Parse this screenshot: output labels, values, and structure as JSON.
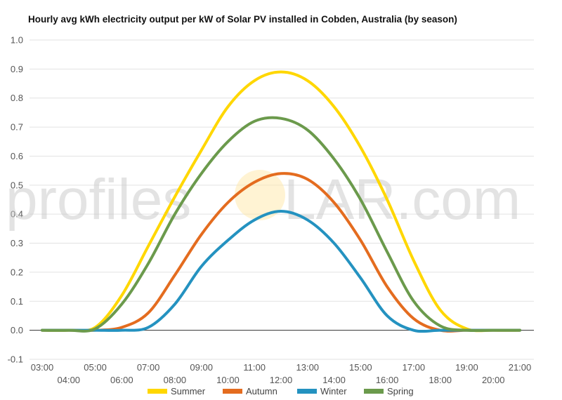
{
  "chart_data": {
    "type": "line",
    "title": "Hourly avg kWh electricity output per kW of Solar PV installed in Cobden, Australia (by season)",
    "xlabel": "",
    "ylabel": "",
    "x": [
      "03:00",
      "04:00",
      "05:00",
      "06:00",
      "07:00",
      "08:00",
      "09:00",
      "10:00",
      "11:00",
      "12:00",
      "13:00",
      "14:00",
      "15:00",
      "16:00",
      "17:00",
      "18:00",
      "19:00",
      "20:00",
      "21:00"
    ],
    "ylim": [
      -0.1,
      1.0
    ],
    "yticks": [
      "1.0",
      "0.9",
      "0.8",
      "0.7",
      "0.6",
      "0.5",
      "0.4",
      "0.3",
      "0.2",
      "0.1",
      "0.0",
      "-0.1"
    ],
    "grid": true,
    "legend_position": "bottom",
    "series": [
      {
        "name": "Summer",
        "color": "#FFD700",
        "values": [
          0,
          0,
          0.01,
          0.12,
          0.29,
          0.46,
          0.62,
          0.77,
          0.86,
          0.89,
          0.86,
          0.77,
          0.63,
          0.45,
          0.24,
          0.07,
          0.005,
          0,
          0
        ]
      },
      {
        "name": "Autumn",
        "color": "#E46C1F",
        "values": [
          0,
          0,
          0,
          0.01,
          0.06,
          0.19,
          0.33,
          0.44,
          0.51,
          0.54,
          0.52,
          0.44,
          0.31,
          0.15,
          0.04,
          0,
          0,
          0,
          0
        ]
      },
      {
        "name": "Winter",
        "color": "#2492C0",
        "values": [
          0,
          0,
          0,
          0,
          0.01,
          0.09,
          0.22,
          0.31,
          0.38,
          0.41,
          0.38,
          0.3,
          0.18,
          0.05,
          0,
          0,
          0,
          0,
          0
        ]
      },
      {
        "name": "Spring",
        "color": "#6B9A4C",
        "values": [
          0,
          0,
          0.005,
          0.09,
          0.23,
          0.4,
          0.54,
          0.65,
          0.72,
          0.73,
          0.69,
          0.59,
          0.45,
          0.27,
          0.1,
          0.015,
          0,
          0,
          0
        ]
      }
    ]
  },
  "watermark": {
    "text_left": "profiles",
    "text_right": "LAR.com",
    "sun_color": "#FFE9A8"
  }
}
